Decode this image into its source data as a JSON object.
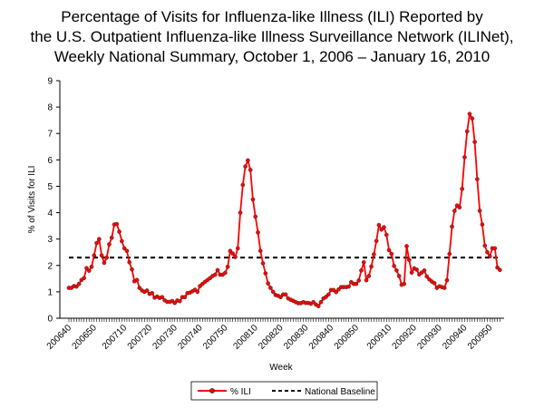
{
  "chart_data": {
    "type": "line",
    "title": [
      "Percentage of Visits for Influenza-like Illness (ILI) Reported by",
      "the U.S. Outpatient Influenza-like Illness Surveillance Network (ILINet),",
      "Weekly National Summary, October 1, 2006 – January 16, 2010"
    ],
    "xlabel": "Week",
    "ylabel": "% of Visits for ILI",
    "ylim": [
      0,
      9
    ],
    "yticks": [
      "0",
      "1",
      "2",
      "3",
      "4",
      "5",
      "6",
      "7",
      "8",
      "9"
    ],
    "xtick_labels": [
      {
        "label": "200640",
        "index": 0
      },
      {
        "label": "200650",
        "index": 10
      },
      {
        "label": "200710",
        "index": 22
      },
      {
        "label": "200720",
        "index": 32
      },
      {
        "label": "200730",
        "index": 42
      },
      {
        "label": "200740",
        "index": 52
      },
      {
        "label": "200750",
        "index": 62
      },
      {
        "label": "200810",
        "index": 74
      },
      {
        "label": "200820",
        "index": 84
      },
      {
        "label": "200830",
        "index": 94
      },
      {
        "label": "200840",
        "index": 104
      },
      {
        "label": "200850",
        "index": 114
      },
      {
        "label": "200910",
        "index": 127
      },
      {
        "label": "200920",
        "index": 137
      },
      {
        "label": "200930",
        "index": 147
      },
      {
        "label": "200940",
        "index": 157
      },
      {
        "label": "200950",
        "index": 167
      }
    ],
    "legend_position": "bottom",
    "series": [
      {
        "name": "% ILI",
        "color": "#ff0000",
        "marker": "circle",
        "values": [
          1.15,
          1.15,
          1.22,
          1.2,
          1.3,
          1.45,
          1.52,
          1.9,
          1.8,
          1.95,
          2.38,
          2.85,
          3.0,
          2.38,
          2.1,
          2.3,
          2.8,
          3.05,
          3.55,
          3.57,
          3.28,
          2.92,
          2.65,
          2.55,
          2.12,
          1.85,
          1.4,
          1.45,
          1.15,
          1.05,
          1.0,
          1.05,
          0.92,
          0.95,
          0.78,
          0.82,
          0.77,
          0.8,
          0.68,
          0.62,
          0.62,
          0.65,
          0.58,
          0.67,
          0.65,
          0.8,
          0.8,
          0.95,
          0.97,
          1.02,
          1.08,
          1.0,
          1.22,
          1.3,
          1.38,
          1.45,
          1.52,
          1.6,
          1.65,
          1.82,
          1.65,
          1.65,
          1.72,
          1.95,
          2.55,
          2.45,
          2.32,
          2.65,
          4.0,
          5.05,
          5.75,
          5.98,
          5.62,
          4.5,
          3.85,
          3.25,
          2.55,
          2.08,
          1.7,
          1.32,
          1.15,
          1.0,
          0.88,
          0.85,
          0.8,
          0.9,
          0.9,
          0.75,
          0.7,
          0.66,
          0.61,
          0.57,
          0.57,
          0.61,
          0.58,
          0.58,
          0.55,
          0.61,
          0.52,
          0.46,
          0.61,
          0.75,
          0.81,
          0.9,
          1.07,
          1.07,
          0.99,
          1.09,
          1.18,
          1.18,
          1.18,
          1.2,
          1.37,
          1.3,
          1.3,
          1.43,
          1.81,
          2.12,
          1.44,
          1.6,
          1.96,
          2.42,
          2.93,
          3.53,
          3.36,
          3.45,
          3.16,
          2.58,
          2.44,
          1.98,
          1.81,
          1.6,
          1.27,
          1.3,
          2.73,
          2.21,
          1.73,
          1.89,
          1.84,
          1.66,
          1.73,
          1.81,
          1.58,
          1.47,
          1.39,
          1.33,
          1.15,
          1.21,
          1.18,
          1.15,
          1.44,
          2.44,
          3.47,
          4.07,
          4.27,
          4.2,
          4.9,
          6.1,
          7.08,
          7.74,
          7.57,
          6.68,
          5.27,
          4.07,
          3.55,
          2.75,
          2.5,
          2.35,
          2.65,
          2.65,
          1.92,
          1.83
        ]
      },
      {
        "name": "National Baseline",
        "color": "#000000",
        "style": "dashed",
        "value": 2.3
      }
    ]
  }
}
